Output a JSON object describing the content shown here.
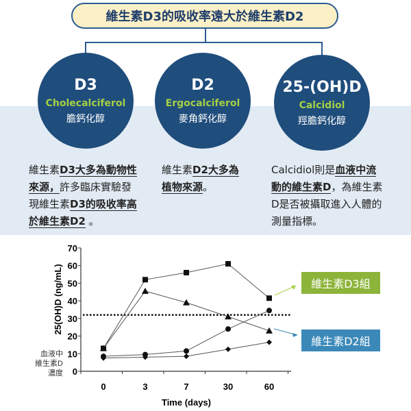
{
  "banner": "維生素D3的吸收率遠大於維生素D2",
  "cards": [
    {
      "title": "D3",
      "english": "Cholecalciferol",
      "chinese": "膽鈣化醇",
      "desc": [
        {
          "t": "維生素",
          "b": false
        },
        {
          "t": "D3大多為動物性來源，",
          "b": true
        },
        {
          "t": "許多臨床實驗發現維生素",
          "b": false
        },
        {
          "t": "D3的吸收率高於維生素D2",
          "b": true
        },
        {
          "t": " 。",
          "b": false
        }
      ]
    },
    {
      "title": "D2",
      "english": "Ergocalciferol",
      "chinese": "麥角鈣化醇",
      "desc": [
        {
          "t": "維生素",
          "b": false
        },
        {
          "t": "D2大多為植物來源",
          "b": true
        },
        {
          "t": "。",
          "b": false
        }
      ]
    },
    {
      "title": "25-(OH)D",
      "english": "Calcidiol",
      "chinese": "羥膽鈣化醇",
      "desc": [
        {
          "t": "Calcidiol",
          "b": false
        },
        {
          "t": "則是",
          "b": false
        },
        {
          "t": "血液中流動的維生素D",
          "b": true
        },
        {
          "t": "，為維生素D是否被攝取進入人體的測量指標。",
          "b": false
        }
      ]
    }
  ],
  "colors": {
    "navy": "#1f4d7c",
    "green": "#8db43a",
    "blue": "#3b89b8",
    "band": "#e2ebf4"
  },
  "chart_data": {
    "type": "line",
    "categories": [
      "0",
      "3",
      "7",
      "30",
      "60"
    ],
    "xlabel": "Time (days)",
    "ylabel": "25(OH)D (ng/mL)",
    "ylabel_cn": "血液中維生素D濃度",
    "ylim": [
      0,
      70
    ],
    "yticks": [
      "0",
      "10",
      "20",
      "30",
      "40",
      "50",
      "60",
      "70"
    ],
    "threshold": 32,
    "series": [
      {
        "marker": "square",
        "values": [
          13,
          52,
          56,
          61,
          41.5
        ]
      },
      {
        "marker": "triangle",
        "values": [
          13,
          45.5,
          39,
          31,
          23
        ]
      },
      {
        "marker": "circle",
        "values": [
          8.5,
          9.5,
          11.5,
          24,
          34.5
        ]
      },
      {
        "marker": "diamond",
        "values": [
          7.5,
          8,
          8.5,
          12.5,
          16.5
        ]
      }
    ],
    "annotations": [
      {
        "text": "維生素D3組",
        "color": "#8db43a"
      },
      {
        "text": "維生素D2組",
        "color": "#3b89b8"
      }
    ]
  }
}
